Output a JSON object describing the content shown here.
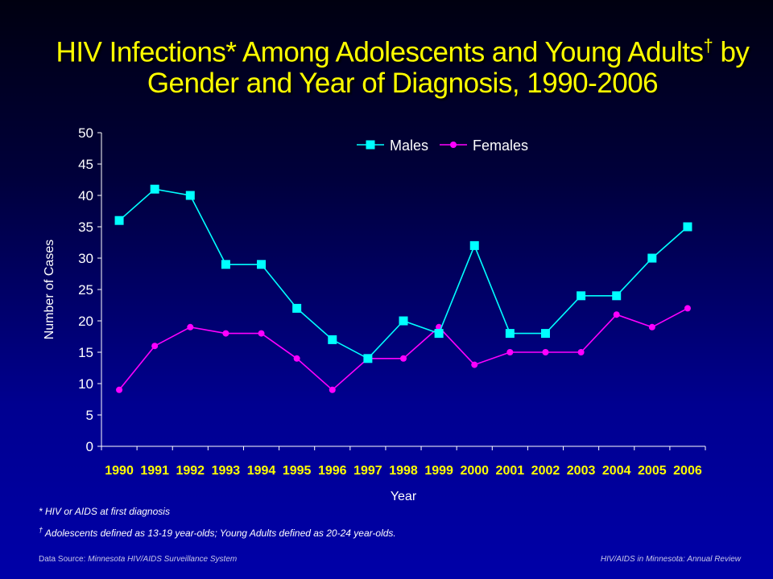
{
  "title": {
    "line1": "HIV Infections* Among Adolescents and Young Adults",
    "dagger": "†",
    "line1_end": " by",
    "line2": "Gender and Year of Diagnosis, 1990-2006"
  },
  "chart_data": {
    "type": "line",
    "categories": [
      "1990",
      "1991",
      "1992",
      "1993",
      "1994",
      "1995",
      "1996",
      "1997",
      "1998",
      "1999",
      "2000",
      "2001",
      "2002",
      "2003",
      "2004",
      "2005",
      "2006"
    ],
    "series": [
      {
        "name": "Males",
        "values": [
          36,
          41,
          40,
          29,
          29,
          22,
          17,
          14,
          20,
          18,
          32,
          18,
          18,
          24,
          24,
          30,
          35
        ],
        "color": "#00ffff",
        "marker": "square"
      },
      {
        "name": "Females",
        "values": [
          9,
          16,
          19,
          18,
          18,
          14,
          9,
          14,
          14,
          19,
          13,
          15,
          15,
          15,
          21,
          19,
          22
        ],
        "color": "#ff00ff",
        "marker": "circle"
      }
    ],
    "xlabel": "Year",
    "ylabel": "Number of Cases",
    "ylim": [
      0,
      50
    ],
    "yticks": [
      0,
      5,
      10,
      15,
      20,
      25,
      30,
      35,
      40,
      45,
      50
    ],
    "legend_position": "top-center",
    "grid": false
  },
  "footnotes": {
    "star": "* HIV or AIDS at first diagnosis",
    "dagger_mark": "†",
    "dagger_text": " Adolescents defined as 13-19 year-olds; Young Adults defined as 20-24 year-olds."
  },
  "source": {
    "left_label": "Data Source: ",
    "left_value": "Minnesota HIV/AIDS Surveillance System",
    "right": "HIV/AIDS in Minnesota: Annual Review"
  },
  "colors": {
    "title": "#ffff00",
    "males": "#00ffff",
    "females": "#ff00ff",
    "axis": "#ffffff",
    "tick_labels_x": "#ffff00"
  }
}
